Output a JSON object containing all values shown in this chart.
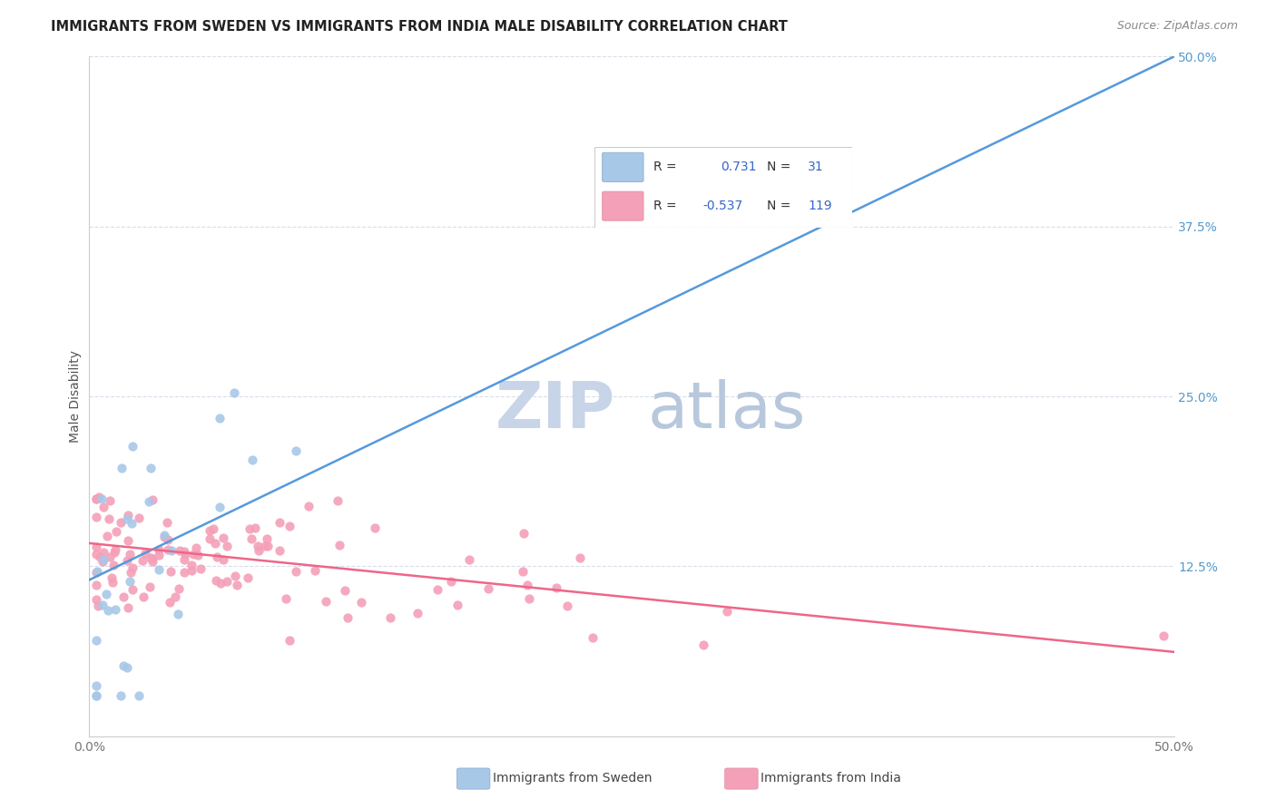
{
  "title": "IMMIGRANTS FROM SWEDEN VS IMMIGRANTS FROM INDIA MALE DISABILITY CORRELATION CHART",
  "source": "Source: ZipAtlas.com",
  "ylabel": "Male Disability",
  "xlim": [
    0.0,
    0.5
  ],
  "ylim": [
    0.0,
    0.5
  ],
  "background_color": "#ffffff",
  "grid_color": "#d8dde8",
  "sweden_color": "#a8c8e8",
  "sweden_edge_color": "#88aacc",
  "india_color": "#f4a0b8",
  "india_edge_color": "#e080a0",
  "sweden_line_color": "#5599dd",
  "india_line_color": "#ee6688",
  "watermark_zip_color": "#c8d4e8",
  "watermark_atlas_color": "#b0c0d8",
  "legend_R_color": "#333333",
  "legend_val_color": "#3366cc",
  "legend_N_color": "#333333",
  "legend_N_val_color": "#3366cc",
  "ytick_color": "#5599cc",
  "xtick_color": "#777777",
  "ylabel_color": "#555555",
  "legend_R_sweden": "0.731",
  "legend_N_sweden": "31",
  "legend_R_india": "-0.537",
  "legend_N_india": "119",
  "sw_line_x0": 0.0,
  "sw_line_y0": 0.115,
  "sw_line_x1": 0.5,
  "sw_line_y1": 0.5,
  "in_line_x0": 0.0,
  "in_line_y0": 0.142,
  "in_line_x1": 0.5,
  "in_line_y1": 0.062
}
